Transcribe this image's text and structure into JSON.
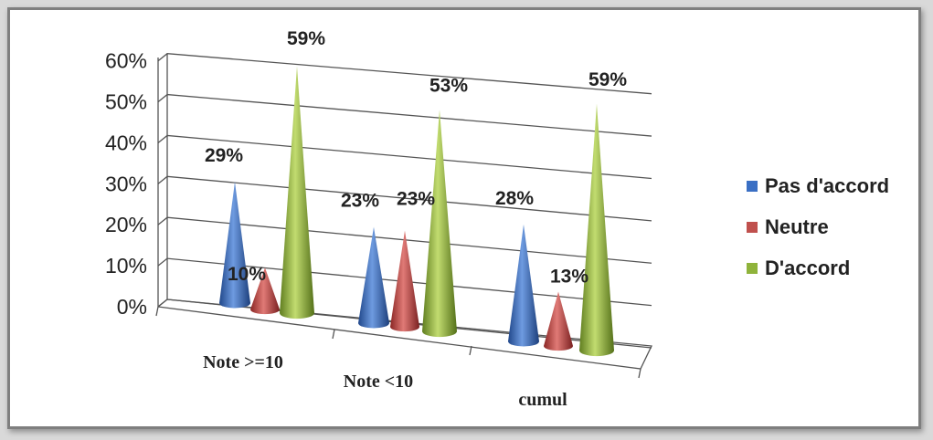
{
  "chart_data": {
    "type": "bar",
    "style": "3d-cone",
    "categories": [
      "Note >=10",
      "Note <10",
      "cumul"
    ],
    "series": [
      {
        "name": "Pas d'accord",
        "values": [
          29,
          23,
          28
        ],
        "labels": [
          "29%",
          "23%",
          "28%"
        ],
        "color": "#3a6fc4"
      },
      {
        "name": "Neutre",
        "values": [
          10,
          23,
          13
        ],
        "labels": [
          "10%",
          "23%",
          "13%"
        ],
        "color": "#c0504d"
      },
      {
        "name": "D'accord",
        "values": [
          59,
          53,
          59
        ],
        "labels": [
          "59%",
          "53%",
          "59%"
        ],
        "color": "#8fb33b"
      }
    ],
    "yticks": [
      "0%",
      "10%",
      "20%",
      "30%",
      "40%",
      "50%",
      "60%"
    ],
    "ylim": [
      0,
      60
    ],
    "grid": true,
    "legend": "right",
    "title": "",
    "xlabel": "",
    "ylabel": ""
  }
}
